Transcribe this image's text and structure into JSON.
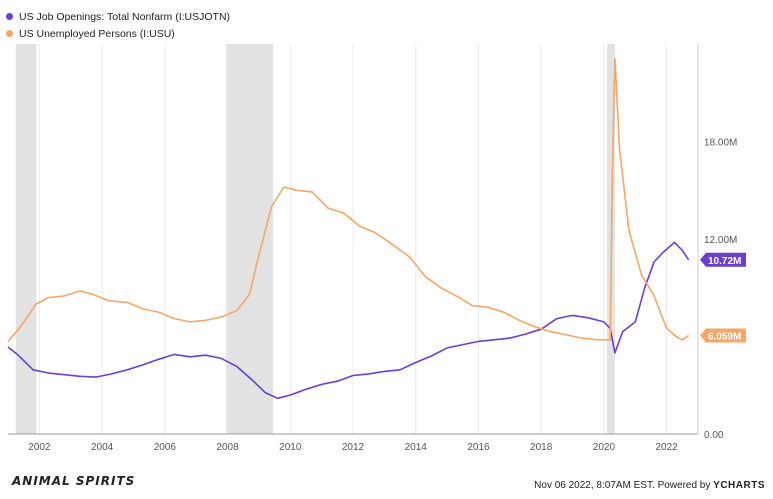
{
  "chart_data": {
    "type": "line",
    "series": [
      {
        "name": "US Job Openings: Total Nonfarm (I:USJOTN)",
        "color": "#6a3fcf",
        "last_label": "10.72M",
        "points": [
          [
            2001.0,
            5.35
          ],
          [
            2001.3,
            4.9
          ],
          [
            2001.8,
            3.95
          ],
          [
            2002.3,
            3.75
          ],
          [
            2002.8,
            3.65
          ],
          [
            2003.3,
            3.55
          ],
          [
            2003.8,
            3.5
          ],
          [
            2004.3,
            3.7
          ],
          [
            2004.8,
            3.95
          ],
          [
            2005.3,
            4.25
          ],
          [
            2005.8,
            4.6
          ],
          [
            2006.3,
            4.9
          ],
          [
            2006.8,
            4.75
          ],
          [
            2007.3,
            4.85
          ],
          [
            2007.8,
            4.65
          ],
          [
            2008.3,
            4.15
          ],
          [
            2008.8,
            3.3
          ],
          [
            2009.2,
            2.55
          ],
          [
            2009.6,
            2.2
          ],
          [
            2010.0,
            2.4
          ],
          [
            2010.5,
            2.75
          ],
          [
            2011.0,
            3.05
          ],
          [
            2011.5,
            3.25
          ],
          [
            2012.0,
            3.6
          ],
          [
            2012.5,
            3.7
          ],
          [
            2013.0,
            3.85
          ],
          [
            2013.5,
            3.95
          ],
          [
            2014.0,
            4.4
          ],
          [
            2014.5,
            4.8
          ],
          [
            2015.0,
            5.3
          ],
          [
            2015.5,
            5.5
          ],
          [
            2016.0,
            5.7
          ],
          [
            2016.5,
            5.8
          ],
          [
            2017.0,
            5.9
          ],
          [
            2017.5,
            6.15
          ],
          [
            2018.0,
            6.45
          ],
          [
            2018.5,
            7.1
          ],
          [
            2019.0,
            7.3
          ],
          [
            2019.5,
            7.15
          ],
          [
            2020.0,
            6.9
          ],
          [
            2020.2,
            6.5
          ],
          [
            2020.35,
            5.0
          ],
          [
            2020.6,
            6.3
          ],
          [
            2021.0,
            6.9
          ],
          [
            2021.3,
            9.0
          ],
          [
            2021.6,
            10.6
          ],
          [
            2021.9,
            11.2
          ],
          [
            2022.25,
            11.8
          ],
          [
            2022.5,
            11.3
          ],
          [
            2022.7,
            10.72
          ]
        ]
      },
      {
        "name": "US Unemployed Persons (I:USU)",
        "color": "#f5a66a",
        "last_label": "6.059M",
        "points": [
          [
            2001.0,
            5.7
          ],
          [
            2001.4,
            6.6
          ],
          [
            2001.9,
            8.0
          ],
          [
            2002.3,
            8.4
          ],
          [
            2002.8,
            8.5
          ],
          [
            2003.3,
            8.8
          ],
          [
            2003.7,
            8.6
          ],
          [
            2004.2,
            8.2
          ],
          [
            2004.8,
            8.1
          ],
          [
            2005.3,
            7.7
          ],
          [
            2005.8,
            7.5
          ],
          [
            2006.3,
            7.1
          ],
          [
            2006.8,
            6.9
          ],
          [
            2007.3,
            7.0
          ],
          [
            2007.8,
            7.2
          ],
          [
            2008.3,
            7.6
          ],
          [
            2008.7,
            8.6
          ],
          [
            2009.0,
            11.0
          ],
          [
            2009.4,
            14.0
          ],
          [
            2009.8,
            15.2
          ],
          [
            2010.2,
            15.0
          ],
          [
            2010.7,
            14.9
          ],
          [
            2011.2,
            13.9
          ],
          [
            2011.7,
            13.6
          ],
          [
            2012.2,
            12.8
          ],
          [
            2012.7,
            12.4
          ],
          [
            2013.3,
            11.6
          ],
          [
            2013.8,
            10.9
          ],
          [
            2014.3,
            9.7
          ],
          [
            2014.8,
            9.0
          ],
          [
            2015.3,
            8.5
          ],
          [
            2015.8,
            7.9
          ],
          [
            2016.3,
            7.8
          ],
          [
            2016.8,
            7.5
          ],
          [
            2017.3,
            7.0
          ],
          [
            2017.8,
            6.6
          ],
          [
            2018.3,
            6.3
          ],
          [
            2018.8,
            6.1
          ],
          [
            2019.3,
            5.9
          ],
          [
            2019.8,
            5.8
          ],
          [
            2020.2,
            5.8
          ],
          [
            2020.27,
            16.0
          ],
          [
            2020.35,
            23.1
          ],
          [
            2020.5,
            17.5
          ],
          [
            2020.8,
            12.5
          ],
          [
            2021.2,
            9.8
          ],
          [
            2021.6,
            8.5
          ],
          [
            2022.0,
            6.5
          ],
          [
            2022.3,
            6.0
          ],
          [
            2022.5,
            5.8
          ],
          [
            2022.7,
            6.059
          ]
        ]
      }
    ],
    "x_ticks": [
      "2002",
      "2004",
      "2006",
      "2008",
      "2010",
      "2012",
      "2014",
      "2016",
      "2018",
      "2020",
      "2022"
    ],
    "y_ticks": [
      "0.00",
      "6.00M",
      "12.00M",
      "18.00M"
    ],
    "xlim": [
      2001.0,
      2023.0
    ],
    "ylim": [
      0,
      24
    ],
    "recessions": [
      [
        2001.25,
        2001.9
      ],
      [
        2007.95,
        2009.45
      ],
      [
        2020.1,
        2020.35
      ]
    ],
    "grid": "vertical at year ticks",
    "legend": "top-left"
  },
  "footer": {
    "brand": "ANIMAL SPIRITS",
    "timestamp": "Nov 06 2022, 8:07AM EST.",
    "powered": "Powered by",
    "ycharts": "YCHARTS"
  }
}
